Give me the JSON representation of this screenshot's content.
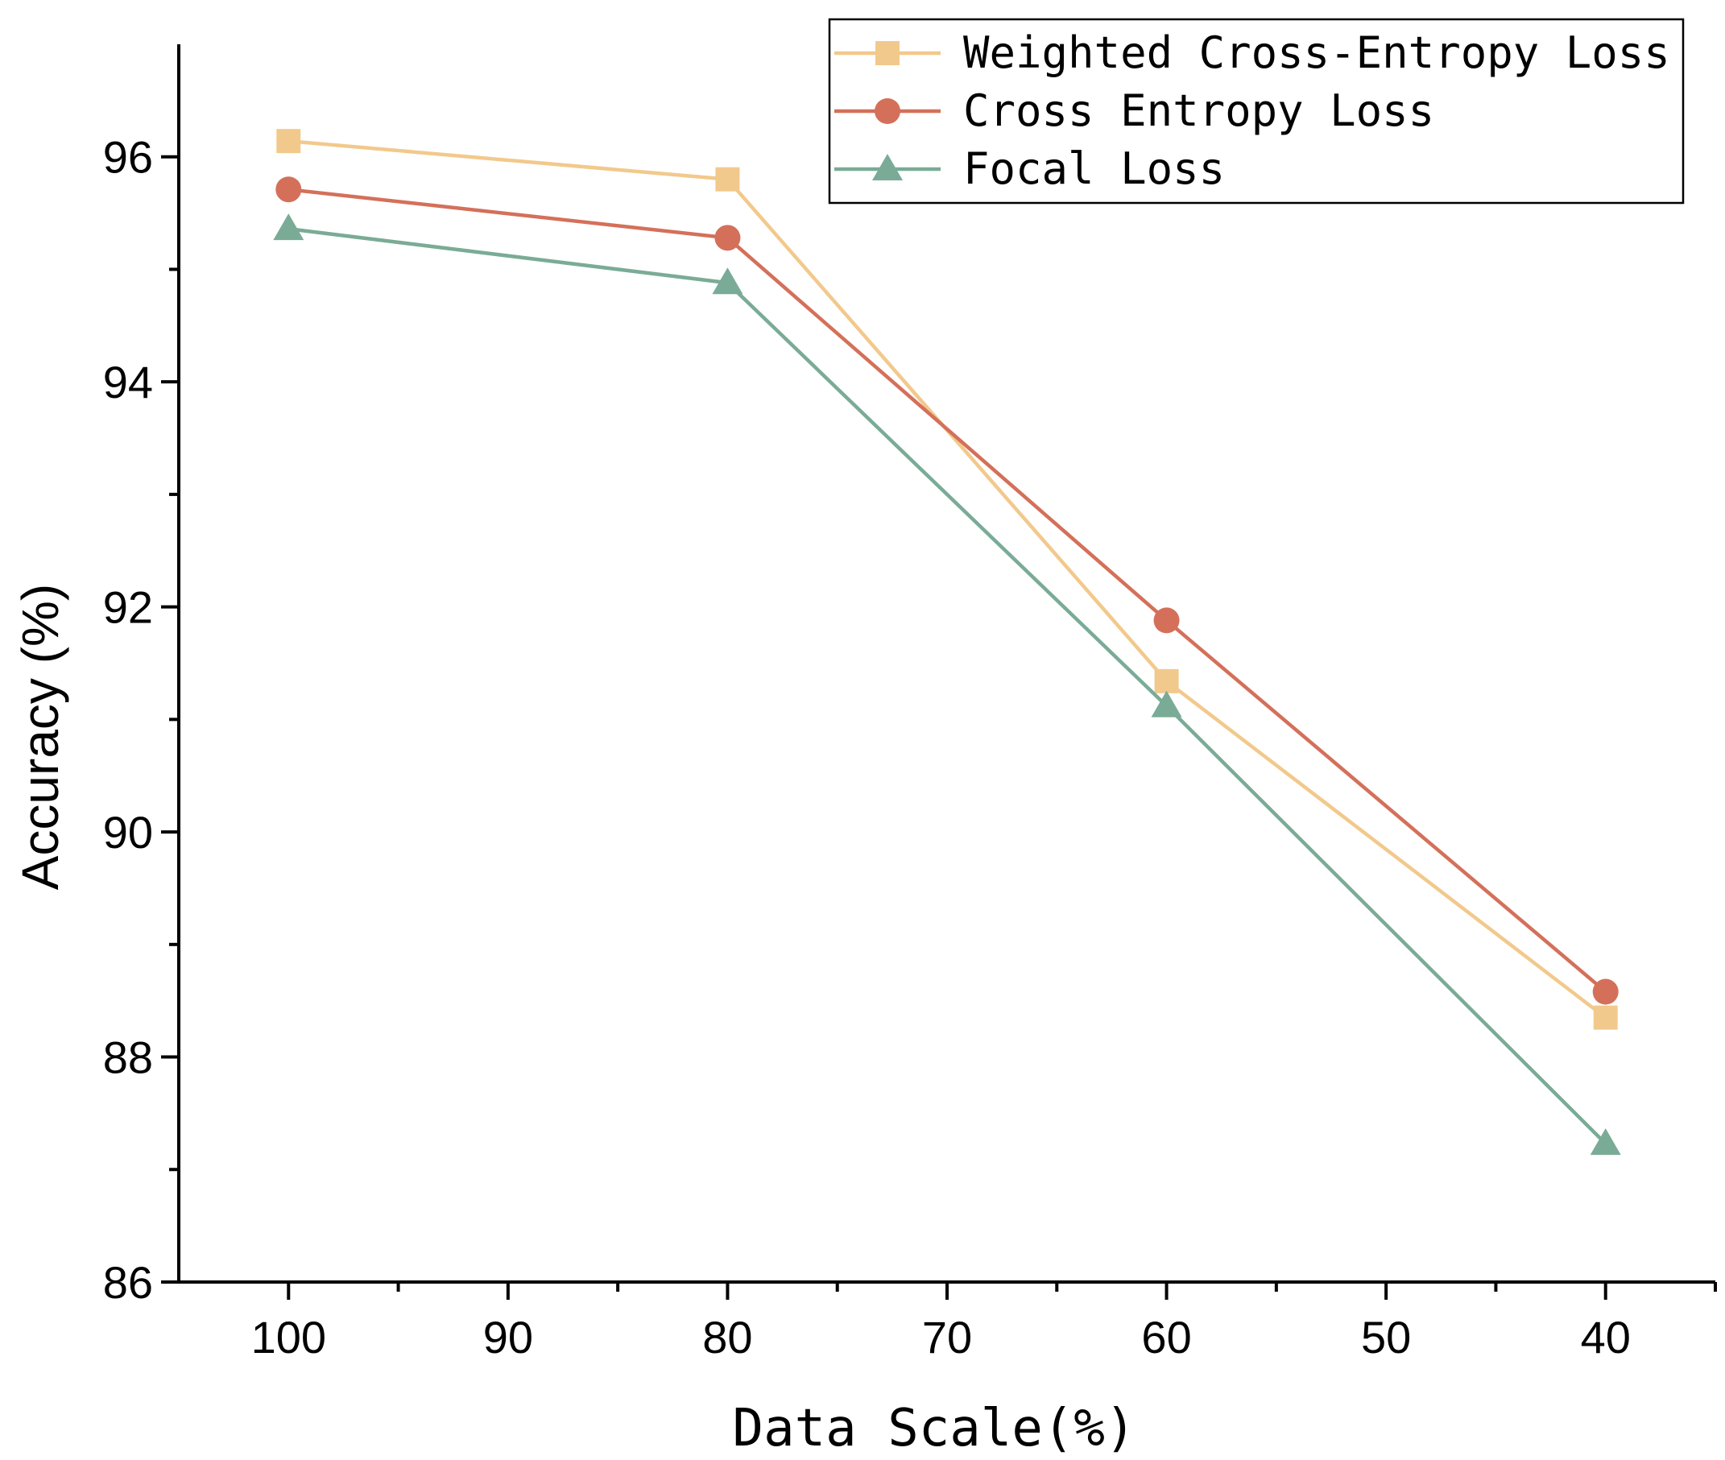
{
  "chart_data": {
    "type": "line",
    "title": "",
    "xlabel": "Data Scale(%)",
    "ylabel": "Accuracy (%)",
    "x_reversed": true,
    "xlim": [
      105,
      35
    ],
    "ylim": [
      86,
      97
    ],
    "x_ticks": [
      100,
      90,
      80,
      70,
      60,
      50,
      40
    ],
    "y_ticks": [
      86,
      88,
      90,
      92,
      94,
      96
    ],
    "x": [
      100,
      80,
      60,
      40
    ],
    "series": [
      {
        "name": "Weighted Cross-Entropy Loss",
        "marker": "square",
        "color": "#f2c98c",
        "values": [
          96.14,
          95.8,
          91.34,
          88.35
        ]
      },
      {
        "name": "Cross Entropy Loss",
        "marker": "circle",
        "color": "#d4705a",
        "values": [
          95.71,
          95.28,
          91.88,
          88.58
        ]
      },
      {
        "name": "Focal Loss",
        "marker": "triangle",
        "color": "#7aab96",
        "values": [
          95.36,
          94.88,
          91.12,
          87.23
        ]
      }
    ],
    "legend_position": "top-right",
    "grid": false
  }
}
